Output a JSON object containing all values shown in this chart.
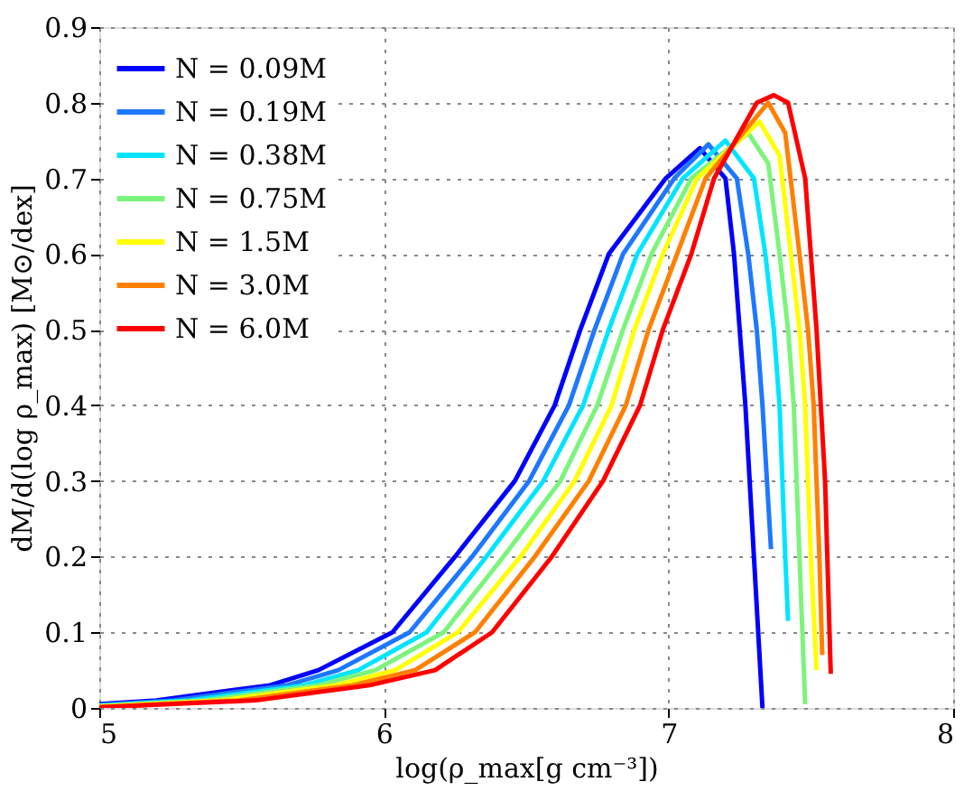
{
  "chart_data": {
    "type": "line",
    "xlabel": "log(ρ_max[g cm⁻³])",
    "ylabel": "dM/d(log ρ_max) [M⊙/dex]",
    "xlim": [
      5,
      8
    ],
    "ylim": [
      0,
      0.9
    ],
    "xticks": [
      5,
      6,
      7,
      8
    ],
    "yticks": [
      0,
      0.1,
      0.2,
      0.3,
      0.4,
      0.5,
      0.6,
      0.7,
      0.8,
      0.9
    ],
    "grid": true,
    "legend": "top left",
    "marker": "none",
    "line_style": "solid",
    "series": [
      {
        "name": "N = 0.09M",
        "color": "#0000ff",
        "x": [
          5.0,
          5.2,
          5.6,
          5.77,
          6.03,
          6.25,
          6.46,
          6.6,
          6.69,
          6.79,
          6.99,
          7.11,
          7.2,
          7.23,
          7.25,
          7.27,
          7.3,
          7.33
        ],
        "values": [
          0.005,
          0.01,
          0.03,
          0.05,
          0.1,
          0.2,
          0.3,
          0.4,
          0.5,
          0.6,
          0.7,
          0.74,
          0.7,
          0.6,
          0.5,
          0.4,
          0.2,
          0.0
        ]
      },
      {
        "name": "N = 0.19M",
        "color": "#1e78ff",
        "x": [
          5.0,
          5.26,
          5.66,
          5.84,
          6.09,
          6.31,
          6.51,
          6.65,
          6.74,
          6.84,
          7.02,
          7.14,
          7.24,
          7.28,
          7.31,
          7.33,
          7.36
        ],
        "values": [
          0.004,
          0.01,
          0.03,
          0.05,
          0.1,
          0.2,
          0.3,
          0.4,
          0.5,
          0.6,
          0.7,
          0.745,
          0.7,
          0.6,
          0.5,
          0.4,
          0.21
        ]
      },
      {
        "name": "N = 0.38M",
        "color": "#00e5ff",
        "x": [
          5.0,
          5.32,
          5.72,
          5.91,
          6.15,
          6.36,
          6.56,
          6.7,
          6.79,
          6.89,
          7.05,
          7.2,
          7.3,
          7.34,
          7.37,
          7.39,
          7.41,
          7.42
        ],
        "values": [
          0.003,
          0.01,
          0.03,
          0.05,
          0.1,
          0.2,
          0.3,
          0.4,
          0.5,
          0.6,
          0.7,
          0.75,
          0.7,
          0.6,
          0.5,
          0.4,
          0.2,
          0.115
        ]
      },
      {
        "name": "N = 0.75M",
        "color": "#7cf47c",
        "x": [
          5.0,
          5.37,
          5.77,
          5.97,
          6.21,
          6.42,
          6.62,
          6.75,
          6.84,
          6.94,
          7.08,
          7.28,
          7.35,
          7.39,
          7.42,
          7.44,
          7.46,
          7.48
        ],
        "values": [
          0.002,
          0.01,
          0.03,
          0.05,
          0.1,
          0.2,
          0.3,
          0.4,
          0.5,
          0.6,
          0.7,
          0.76,
          0.72,
          0.6,
          0.5,
          0.4,
          0.2,
          0.005
        ]
      },
      {
        "name": "N = 1.5M",
        "color": "#ffff00",
        "x": [
          5.0,
          5.43,
          5.83,
          6.04,
          6.26,
          6.48,
          6.67,
          6.8,
          6.88,
          6.98,
          7.1,
          7.32,
          7.39,
          7.43,
          7.46,
          7.48,
          7.5,
          7.52
        ],
        "values": [
          0.002,
          0.01,
          0.03,
          0.05,
          0.1,
          0.2,
          0.3,
          0.4,
          0.5,
          0.6,
          0.7,
          0.775,
          0.73,
          0.6,
          0.5,
          0.4,
          0.2,
          0.05
        ]
      },
      {
        "name": "N = 3.0M",
        "color": "#ff8000",
        "x": [
          5.0,
          5.49,
          5.89,
          6.11,
          6.32,
          6.53,
          6.72,
          6.85,
          6.93,
          7.03,
          7.13,
          7.35,
          7.41,
          7.46,
          7.49,
          7.51,
          7.53,
          7.54
        ],
        "values": [
          0.001,
          0.01,
          0.03,
          0.05,
          0.1,
          0.2,
          0.3,
          0.4,
          0.5,
          0.6,
          0.7,
          0.8,
          0.76,
          0.6,
          0.5,
          0.4,
          0.2,
          0.07
        ]
      },
      {
        "name": "N = 6.0M",
        "color": "#ff0000",
        "x": [
          5.0,
          5.55,
          5.95,
          6.18,
          6.38,
          6.59,
          6.77,
          6.9,
          6.98,
          7.08,
          7.16,
          7.31,
          7.37,
          7.42,
          7.48,
          7.52,
          7.55,
          7.57
        ],
        "values": [
          0.001,
          0.01,
          0.03,
          0.05,
          0.1,
          0.2,
          0.3,
          0.4,
          0.5,
          0.6,
          0.7,
          0.8,
          0.81,
          0.8,
          0.7,
          0.5,
          0.3,
          0.045
        ]
      }
    ]
  }
}
